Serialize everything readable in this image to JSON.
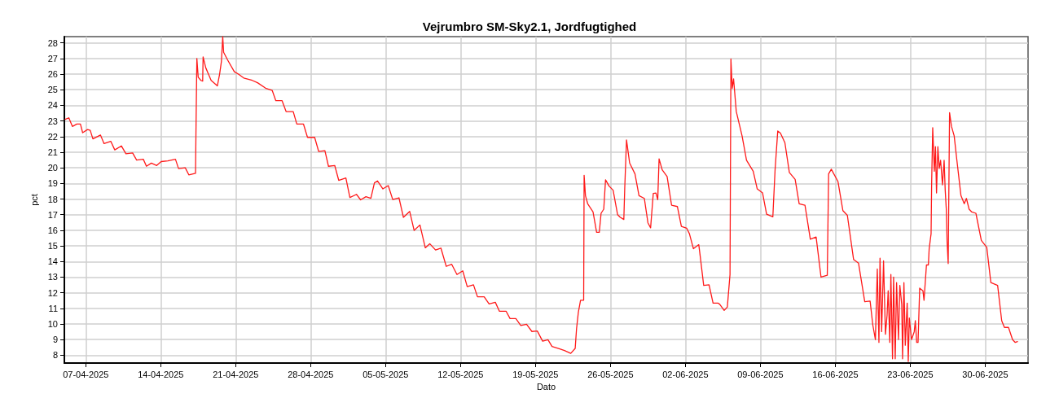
{
  "chart_data": {
    "type": "line",
    "title": "Vejrumbro SM-Sky2.1, Jordfugtighed",
    "xlabel": "Dato",
    "ylabel": "pct",
    "grid": true,
    "marker": "none",
    "line_style": "solid",
    "xlim": [
      "2025-04-05",
      "2025-07-04"
    ],
    "xticks": [
      {
        "value": "2025-04-07",
        "label": "07-04-2025"
      },
      {
        "value": "2025-04-14",
        "label": "14-04-2025"
      },
      {
        "value": "2025-04-21",
        "label": "21-04-2025"
      },
      {
        "value": "2025-04-28",
        "label": "28-04-2025"
      },
      {
        "value": "2025-05-05",
        "label": "05-05-2025"
      },
      {
        "value": "2025-05-12",
        "label": "12-05-2025"
      },
      {
        "value": "2025-05-19",
        "label": "19-05-2025"
      },
      {
        "value": "2025-05-26",
        "label": "26-05-2025"
      },
      {
        "value": "2025-06-02",
        "label": "02-06-2025"
      },
      {
        "value": "2025-06-09",
        "label": "09-06-2025"
      },
      {
        "value": "2025-06-16",
        "label": "16-06-2025"
      },
      {
        "value": "2025-06-23",
        "label": "23-06-2025"
      },
      {
        "value": "2025-06-30",
        "label": "30-06-2025"
      }
    ],
    "ylim": [
      7.5,
      28.4
    ],
    "yticks": [
      8,
      9,
      10,
      11,
      12,
      13,
      14,
      15,
      16,
      17,
      18,
      19,
      20,
      21,
      22,
      23,
      24,
      25,
      26,
      27,
      28
    ],
    "series": [
      {
        "color": "#ff1a1a",
        "x": [
          "2025-04-05T02:00",
          "2025-04-05T10:00",
          "2025-04-05T18:00",
          "2025-04-06T04:00",
          "2025-04-06T12:00",
          "2025-04-06T17:00",
          "2025-04-07T04:00",
          "2025-04-07T10:00",
          "2025-04-07T16:00",
          "2025-04-08T09:00",
          "2025-04-08T17:00",
          "2025-04-09T08:00",
          "2025-04-09T17:00",
          "2025-04-10T08:00",
          "2025-04-10T18:00",
          "2025-04-11T09:00",
          "2025-04-11T18:00",
          "2025-04-12T09:00",
          "2025-04-12T16:00",
          "2025-04-13T03:00",
          "2025-04-13T15:00",
          "2025-04-14T01:00",
          "2025-04-14T16:00",
          "2025-04-15T09:00",
          "2025-04-15T16:00",
          "2025-04-16T07:00",
          "2025-04-16T15:00",
          "2025-04-17T06:00",
          "2025-04-17T07:00",
          "2025-04-17T09:00",
          "2025-04-17T12:00",
          "2025-04-17T18:00",
          "2025-04-17T22:00",
          "2025-04-17T23:00",
          "2025-04-18T05:00",
          "2025-04-18T17:00",
          "2025-04-19T07:00",
          "2025-04-19T12:00",
          "2025-04-19T16:00",
          "2025-04-19T19:00",
          "2025-04-19T21:00",
          "2025-04-20T06:00",
          "2025-04-20T21:00",
          "2025-04-21T06:00",
          "2025-04-21T18:00",
          "2025-04-22T13:00",
          "2025-04-23T01:00",
          "2025-04-23T19:00",
          "2025-04-24T10:00",
          "2025-04-24T18:00",
          "2025-04-25T08:00",
          "2025-04-25T17:00",
          "2025-04-26T09:00",
          "2025-04-26T17:00",
          "2025-04-27T08:00",
          "2025-04-27T17:00",
          "2025-04-28T09:00",
          "2025-04-28T18:00",
          "2025-04-29T08:00",
          "2025-04-29T16:00",
          "2025-04-30T06:00",
          "2025-04-30T15:00",
          "2025-05-01T07:00",
          "2025-05-01T16:00",
          "2025-05-02T07:00",
          "2025-05-02T16:00",
          "2025-05-03T04:00",
          "2025-05-03T15:00",
          "2025-05-03T23:00",
          "2025-05-04T06:00",
          "2025-05-04T18:00",
          "2025-05-05T06:00",
          "2025-05-05T16:00",
          "2025-05-06T06:00",
          "2025-05-06T16:00",
          "2025-05-07T06:00",
          "2025-05-07T16:00",
          "2025-05-08T05:00",
          "2025-05-08T17:00",
          "2025-05-09T03:00",
          "2025-05-09T16:00",
          "2025-05-10T04:00",
          "2025-05-10T16:00",
          "2025-05-11T04:00",
          "2025-05-11T16:00",
          "2025-05-12T05:00",
          "2025-05-12T15:00",
          "2025-05-13T05:00",
          "2025-05-13T14:00",
          "2025-05-14T05:00",
          "2025-05-14T16:00",
          "2025-05-15T06:00",
          "2025-05-15T15:00",
          "2025-05-16T06:00",
          "2025-05-16T15:00",
          "2025-05-17T04:00",
          "2025-05-17T15:00",
          "2025-05-18T04:00",
          "2025-05-18T16:00",
          "2025-05-19T04:00",
          "2025-05-19T16:00",
          "2025-05-20T04:00",
          "2025-05-20T13:00",
          "2025-05-21T05:00",
          "2025-05-21T17:00",
          "2025-05-22T07:00",
          "2025-05-22T17:00",
          "2025-05-22T20:00",
          "2025-05-23T00:00",
          "2025-05-23T05:00",
          "2025-05-23T12:00",
          "2025-05-23T13:00",
          "2025-05-23T16:00",
          "2025-05-23T21:00",
          "2025-05-24T09:00",
          "2025-05-24T17:00",
          "2025-05-24T23:00",
          "2025-05-25T03:00",
          "2025-05-25T09:00",
          "2025-05-25T13:00",
          "2025-05-25T21:00",
          "2025-05-26T06:00",
          "2025-05-26T16:00",
          "2025-05-26T22:00",
          "2025-05-27T06:00",
          "2025-05-27T08:00",
          "2025-05-27T12:00",
          "2025-05-27T19:00",
          "2025-05-28T07:00",
          "2025-05-28T16:00",
          "2025-05-29T04:00",
          "2025-05-29T12:00",
          "2025-05-29T18:00",
          "2025-05-30T00:00",
          "2025-05-30T06:00",
          "2025-05-30T10:00",
          "2025-05-30T13:00",
          "2025-05-30T20:00",
          "2025-05-31T07:00",
          "2025-05-31T17:00",
          "2025-06-01T06:00",
          "2025-06-01T15:00",
          "2025-06-02T03:00",
          "2025-06-02T09:00",
          "2025-06-02T18:00",
          "2025-06-03T06:00",
          "2025-06-03T09:00",
          "2025-06-03T17:00",
          "2025-06-04T05:00",
          "2025-06-04T14:00",
          "2025-06-05T01:00",
          "2025-06-05T05:00",
          "2025-06-05T15:00",
          "2025-06-05T22:00",
          "2025-06-06T04:00",
          "2025-06-06T06:00",
          "2025-06-06T09:00",
          "2025-06-06T12:00",
          "2025-06-06T18:00",
          "2025-06-07T07:00",
          "2025-06-07T17:00",
          "2025-06-08T08:00",
          "2025-06-08T17:00",
          "2025-06-09T05:00",
          "2025-06-09T14:00",
          "2025-06-10T04:00",
          "2025-06-10T09:00",
          "2025-06-10T15:00",
          "2025-06-10T21:00",
          "2025-06-11T07:00",
          "2025-06-11T17:00",
          "2025-06-12T06:00",
          "2025-06-12T15:00",
          "2025-06-13T04:00",
          "2025-06-13T16:00",
          "2025-06-14T05:00",
          "2025-06-14T16:00",
          "2025-06-15T06:00",
          "2025-06-15T09:00",
          "2025-06-15T15:00",
          "2025-06-16T06:00",
          "2025-06-16T17:00",
          "2025-06-17T03:00",
          "2025-06-17T17:00",
          "2025-06-18T04:00",
          "2025-06-18T18:00",
          "2025-06-19T06:00",
          "2025-06-19T12:00",
          "2025-06-19T17:51",
          "2025-06-19T22:08",
          "2025-06-20T01:47",
          "2025-06-20T04:13",
          "2025-06-20T07:52",
          "2025-06-20T12:07",
          "2025-06-20T16:23",
          "2025-06-20T20:02",
          "2025-06-20T22:29",
          "2025-06-21T02:08",
          "2025-06-21T04:34",
          "2025-06-21T08:14",
          "2025-06-21T10:39",
          "2025-06-21T14:18",
          "2025-06-21T17:21",
          "2025-06-21T21:37",
          "2025-06-22T00:39",
          "2025-06-22T04:55",
          "2025-06-22T06:45",
          "2025-06-22T09:48",
          "2025-06-22T12:50",
          "2025-06-22T17:05",
          "2025-06-22T19:32",
          "2025-06-22T21:58",
          "2025-06-23T02:50",
          "2025-06-23T08:56",
          "2025-06-23T11:21",
          "2025-06-23T14:24",
          "2025-06-23T17:27",
          "2025-06-23T21:06",
          "2025-06-24T04:25",
          "2025-06-24T06:50",
          "2025-06-24T12:19",
          "2025-06-24T16:35",
          "2025-06-24T18:24",
          "2025-06-24T22:41",
          "2025-06-24T23:53",
          "2025-06-25T02:20",
          "2025-06-25T05:59",
          "2025-06-25T08:25",
          "2025-06-25T10:51",
          "2025-06-25T13:54",
          "2025-06-25T16:57",
          "2025-06-25T20:00",
          "2025-06-26T00:14",
          "2025-06-26T03:55",
          "2025-06-26T06:20",
          "2025-06-26T08:46",
          "2025-06-26T10:35",
          "2025-06-26T13:02",
          "2025-06-26T16:05",
          "2025-06-26T20:20",
          "2025-06-27T02:25",
          "2025-06-27T08:31",
          "2025-06-27T17:38",
          "2025-06-28T00:58",
          "2025-06-28T05:50",
          "2025-06-28T11:54",
          "2025-06-28T18:00",
          "2025-06-29T03:07",
          "2025-06-29T15:19",
          "2025-06-30T03:29",
          "2025-06-30T12:37",
          "2025-07-01T03:50",
          "2025-07-01T12:58",
          "2025-07-01T19:03",
          "2025-07-02T04:11",
          "2025-07-02T13:19",
          "2025-07-02T19:24",
          "2025-07-03T00:16"
        ],
        "values": [
          23.1,
          23.2,
          22.65,
          22.8,
          22.8,
          22.25,
          22.45,
          22.4,
          21.85,
          22.1,
          21.55,
          21.7,
          21.15,
          21.4,
          20.9,
          20.95,
          20.5,
          20.55,
          20.1,
          20.3,
          20.15,
          20.4,
          20.45,
          20.55,
          19.95,
          20.0,
          19.55,
          19.65,
          22.3,
          27.0,
          25.8,
          25.6,
          25.55,
          27.1,
          26.4,
          25.6,
          25.25,
          26.0,
          26.8,
          28.4,
          27.4,
          26.9,
          26.15,
          26.0,
          25.75,
          25.6,
          25.45,
          25.1,
          24.95,
          24.3,
          24.3,
          23.6,
          23.6,
          22.8,
          22.8,
          21.95,
          21.95,
          21.05,
          21.1,
          20.1,
          20.15,
          19.2,
          19.35,
          18.1,
          18.3,
          17.95,
          18.15,
          18.05,
          19.04,
          19.16,
          18.65,
          18.86,
          17.97,
          18.08,
          16.83,
          17.21,
          15.99,
          16.34,
          14.88,
          15.14,
          14.74,
          14.86,
          13.69,
          13.83,
          13.17,
          13.4,
          12.39,
          12.51,
          11.74,
          11.74,
          11.29,
          11.39,
          10.82,
          10.82,
          10.35,
          10.35,
          9.9,
          9.98,
          9.52,
          9.55,
          8.9,
          8.99,
          8.56,
          8.42,
          8.3,
          8.12,
          8.44,
          9.69,
          10.74,
          11.52,
          11.52,
          19.52,
          18.22,
          17.7,
          17.17,
          15.87,
          15.87,
          17.09,
          17.35,
          19.23,
          18.83,
          18.57,
          17.0,
          16.83,
          16.69,
          18.65,
          21.79,
          20.31,
          19.61,
          18.22,
          18.04,
          16.48,
          16.16,
          18.36,
          18.39,
          17.96,
          20.57,
          19.87,
          19.44,
          17.61,
          17.52,
          16.25,
          16.13,
          15.78,
          14.82,
          15.08,
          14.39,
          12.47,
          12.51,
          11.34,
          11.34,
          11.26,
          10.87,
          11.09,
          13.17,
          26.97,
          25.09,
          25.7,
          23.61,
          22.05,
          20.48,
          19.78,
          18.65,
          18.39,
          17.03,
          16.86,
          19.87,
          22.36,
          22.22,
          21.61,
          19.7,
          19.26,
          17.7,
          17.61,
          15.43,
          15.57,
          13.0,
          13.12,
          19.61,
          19.91,
          19.12,
          17.26,
          16.96,
          14.13,
          13.9,
          11.43,
          11.47,
          9.95,
          9.0,
          13.52,
          8.82,
          14.21,
          9.51,
          14.04,
          9.34,
          10.56,
          12.13,
          8.82,
          13.17,
          7.77,
          13.0,
          7.77,
          12.65,
          9.0,
          12.47,
          11.26,
          7.77,
          12.65,
          8.64,
          11.34,
          7.6,
          10.38,
          9.0,
          9.51,
          10.21,
          8.82,
          8.82,
          12.3,
          12.13,
          11.52,
          13.78,
          13.78,
          14.82,
          15.78,
          18.91,
          22.57,
          19.78,
          21.35,
          18.39,
          21.35,
          19.96,
          20.48,
          18.91,
          20.48,
          18.57,
          17.35,
          15.26,
          13.87,
          23.53,
          22.66,
          22.05,
          20.48,
          18.22,
          17.7,
          18.04,
          17.35,
          17.17,
          17.09,
          15.35,
          14.91,
          12.65,
          12.47,
          10.21,
          9.78,
          9.78,
          9.0,
          8.82,
          8.87
        ]
      }
    ]
  }
}
